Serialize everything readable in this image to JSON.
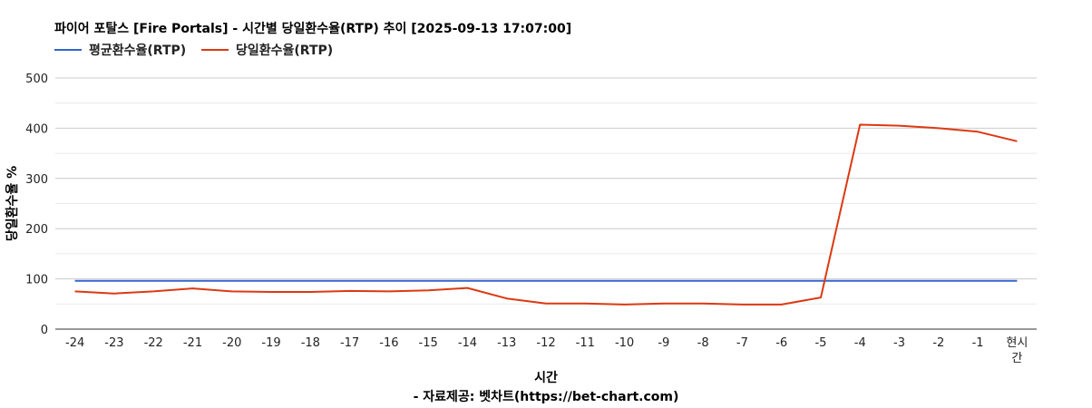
{
  "chart_data": {
    "type": "line",
    "title": "파이어 포탈스 [Fire Portals] - 시간별 당일환수율(RTP) 추이 [2025-09-13 17:07:00]",
    "xlabel": "시간",
    "ylabel": "당일환수율 %",
    "footer": "- 자료제공: 벳차트(https://bet-chart.com)",
    "categories": [
      "-24",
      "-23",
      "-22",
      "-21",
      "-20",
      "-19",
      "-18",
      "-17",
      "-16",
      "-15",
      "-14",
      "-13",
      "-12",
      "-11",
      "-10",
      "-9",
      "-8",
      "-7",
      "-6",
      "-5",
      "-4",
      "-3",
      "-2",
      "-1",
      "현시간"
    ],
    "ylim": [
      0,
      500
    ],
    "yticks": [
      0,
      100,
      200,
      300,
      400,
      500
    ],
    "grid": true,
    "legend_position": "top-left",
    "series": [
      {
        "name": "평균환수율(RTP)",
        "color": "#3366cc",
        "values": [
          96,
          96,
          96,
          96,
          96,
          96,
          96,
          96,
          96,
          96,
          96,
          96,
          96,
          96,
          96,
          96,
          96,
          96,
          96,
          96,
          96,
          96,
          96,
          96,
          96
        ]
      },
      {
        "name": "당일환수율(RTP)",
        "color": "#dc3912",
        "values": [
          75,
          71,
          75,
          81,
          75,
          74,
          74,
          76,
          75,
          77,
          82,
          61,
          51,
          51,
          49,
          51,
          51,
          49,
          49,
          63,
          407,
          405,
          400,
          393,
          374
        ]
      }
    ]
  }
}
